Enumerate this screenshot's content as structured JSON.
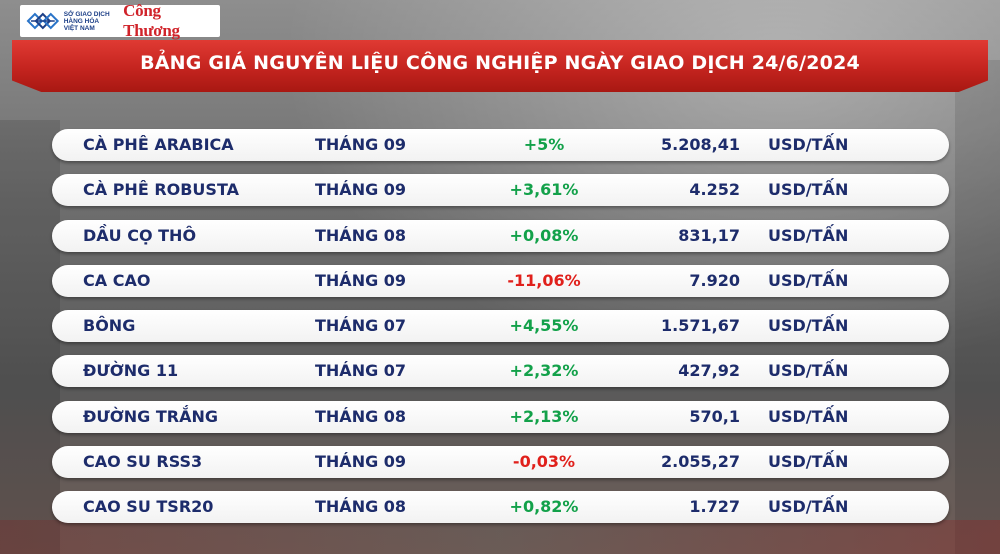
{
  "header": {
    "logo_lines": [
      "SỞ GIAO DỊCH",
      "HÀNG HÓA",
      "VIỆT NAM"
    ],
    "brand": "Công Thương",
    "title": "BẢNG GIÁ NGUYÊN LIỆU CÔNG NGHIỆP NGÀY GIAO DỊCH 24/6/2024"
  },
  "colors": {
    "banner": "#c4241f",
    "up": "#13a14a",
    "down": "#e0201b",
    "text": "#1d2c6b"
  },
  "rows": [
    {
      "name": "CÀ PHÊ ARABICA",
      "month": "THÁNG 09",
      "change": "+5%",
      "direction": "up",
      "price": "5.208,41",
      "unit": "USD/TẤN"
    },
    {
      "name": "CÀ PHÊ ROBUSTA",
      "month": "THÁNG 09",
      "change": "+3,61%",
      "direction": "up",
      "price": "4.252",
      "unit": "USD/TẤN"
    },
    {
      "name": "DẦU CỌ THÔ",
      "month": "THÁNG 08",
      "change": "+0,08%",
      "direction": "up",
      "price": "831,17",
      "unit": "USD/TẤN"
    },
    {
      "name": "CA CAO",
      "month": "THÁNG 09",
      "change": "-11,06%",
      "direction": "down",
      "price": "7.920",
      "unit": "USD/TẤN"
    },
    {
      "name": "BÔNG",
      "month": "THÁNG 07",
      "change": "+4,55%",
      "direction": "up",
      "price": "1.571,67",
      "unit": "USD/TẤN"
    },
    {
      "name": "ĐƯỜNG 11",
      "month": "THÁNG 07",
      "change": "+2,32%",
      "direction": "up",
      "price": "427,92",
      "unit": "USD/TẤN"
    },
    {
      "name": "ĐƯỜNG TRẮNG",
      "month": "THÁNG 08",
      "change": "+2,13%",
      "direction": "up",
      "price": "570,1",
      "unit": "USD/TẤN"
    },
    {
      "name": "CAO SU RSS3",
      "month": "THÁNG 09",
      "change": "-0,03%",
      "direction": "down",
      "price": "2.055,27",
      "unit": "USD/TẤN"
    },
    {
      "name": "CAO SU TSR20",
      "month": "THÁNG 08",
      "change": "+0,82%",
      "direction": "up",
      "price": "1.727",
      "unit": "USD/TẤN"
    }
  ]
}
